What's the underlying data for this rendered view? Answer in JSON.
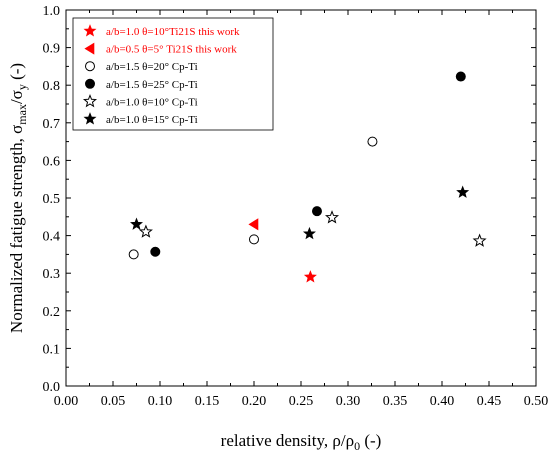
{
  "chart_data": {
    "type": "scatter",
    "xlabel": "relative density, ρ/ρ0 (-)",
    "ylabel": "Normalized fatigue strength, σmax/σy (-)",
    "xlabel_parts": {
      "pre": "relative density, ρ/ρ",
      "sub": "0",
      "post": " (-)"
    },
    "ylabel_parts": {
      "pre": "Normalized fatigue strength, σ",
      "sub1": "max",
      "mid": "/σ",
      "sub2": "y",
      "post": " (-)"
    },
    "xlim": [
      0.0,
      0.5
    ],
    "ylim": [
      0.0,
      1.0
    ],
    "xticks": [
      "0.00",
      "0.05",
      "0.10",
      "0.15",
      "0.20",
      "0.25",
      "0.30",
      "0.35",
      "0.40",
      "0.45",
      "0.50"
    ],
    "yticks": [
      "0.0",
      "0.1",
      "0.2",
      "0.3",
      "0.4",
      "0.5",
      "0.6",
      "0.7",
      "0.8",
      "0.9",
      "1.0"
    ],
    "grid": false,
    "legend_position": "top-left",
    "series": [
      {
        "name": "a/b=1.0 θ=10°Ti21S this work",
        "marker": "star-filled",
        "color": "#ff0000",
        "label_color": "#ff0000",
        "points": [
          [
            0.26,
            0.29
          ]
        ]
      },
      {
        "name": "a/b=0.5 θ=5° Ti21S this work",
        "marker": "triangle-left-filled",
        "color": "#ff0000",
        "label_color": "#ff0000",
        "points": [
          [
            0.2,
            0.43
          ]
        ]
      },
      {
        "name": "a/b=1.5 θ=20° Cp-Ti",
        "marker": "circle-open",
        "color": "#000000",
        "label_color": "#000000",
        "points": [
          [
            0.072,
            0.35
          ],
          [
            0.2,
            0.39
          ],
          [
            0.326,
            0.65
          ]
        ]
      },
      {
        "name": "a/b=1.5 θ=25° Cp-Ti",
        "marker": "circle-filled",
        "color": "#000000",
        "label_color": "#000000",
        "points": [
          [
            0.095,
            0.357
          ],
          [
            0.267,
            0.465
          ],
          [
            0.42,
            0.823
          ]
        ]
      },
      {
        "name": "a/b=1.0 θ=10° Cp-Ti",
        "marker": "star-open",
        "color": "#000000",
        "label_color": "#000000",
        "points": [
          [
            0.085,
            0.41
          ],
          [
            0.283,
            0.448
          ],
          [
            0.44,
            0.386
          ]
        ]
      },
      {
        "name": "a/b=1.0 θ=15° Cp-Ti",
        "marker": "star-filled",
        "color": "#000000",
        "label_color": "#000000",
        "points": [
          [
            0.075,
            0.43
          ],
          [
            0.259,
            0.405
          ],
          [
            0.422,
            0.515
          ]
        ]
      }
    ]
  }
}
